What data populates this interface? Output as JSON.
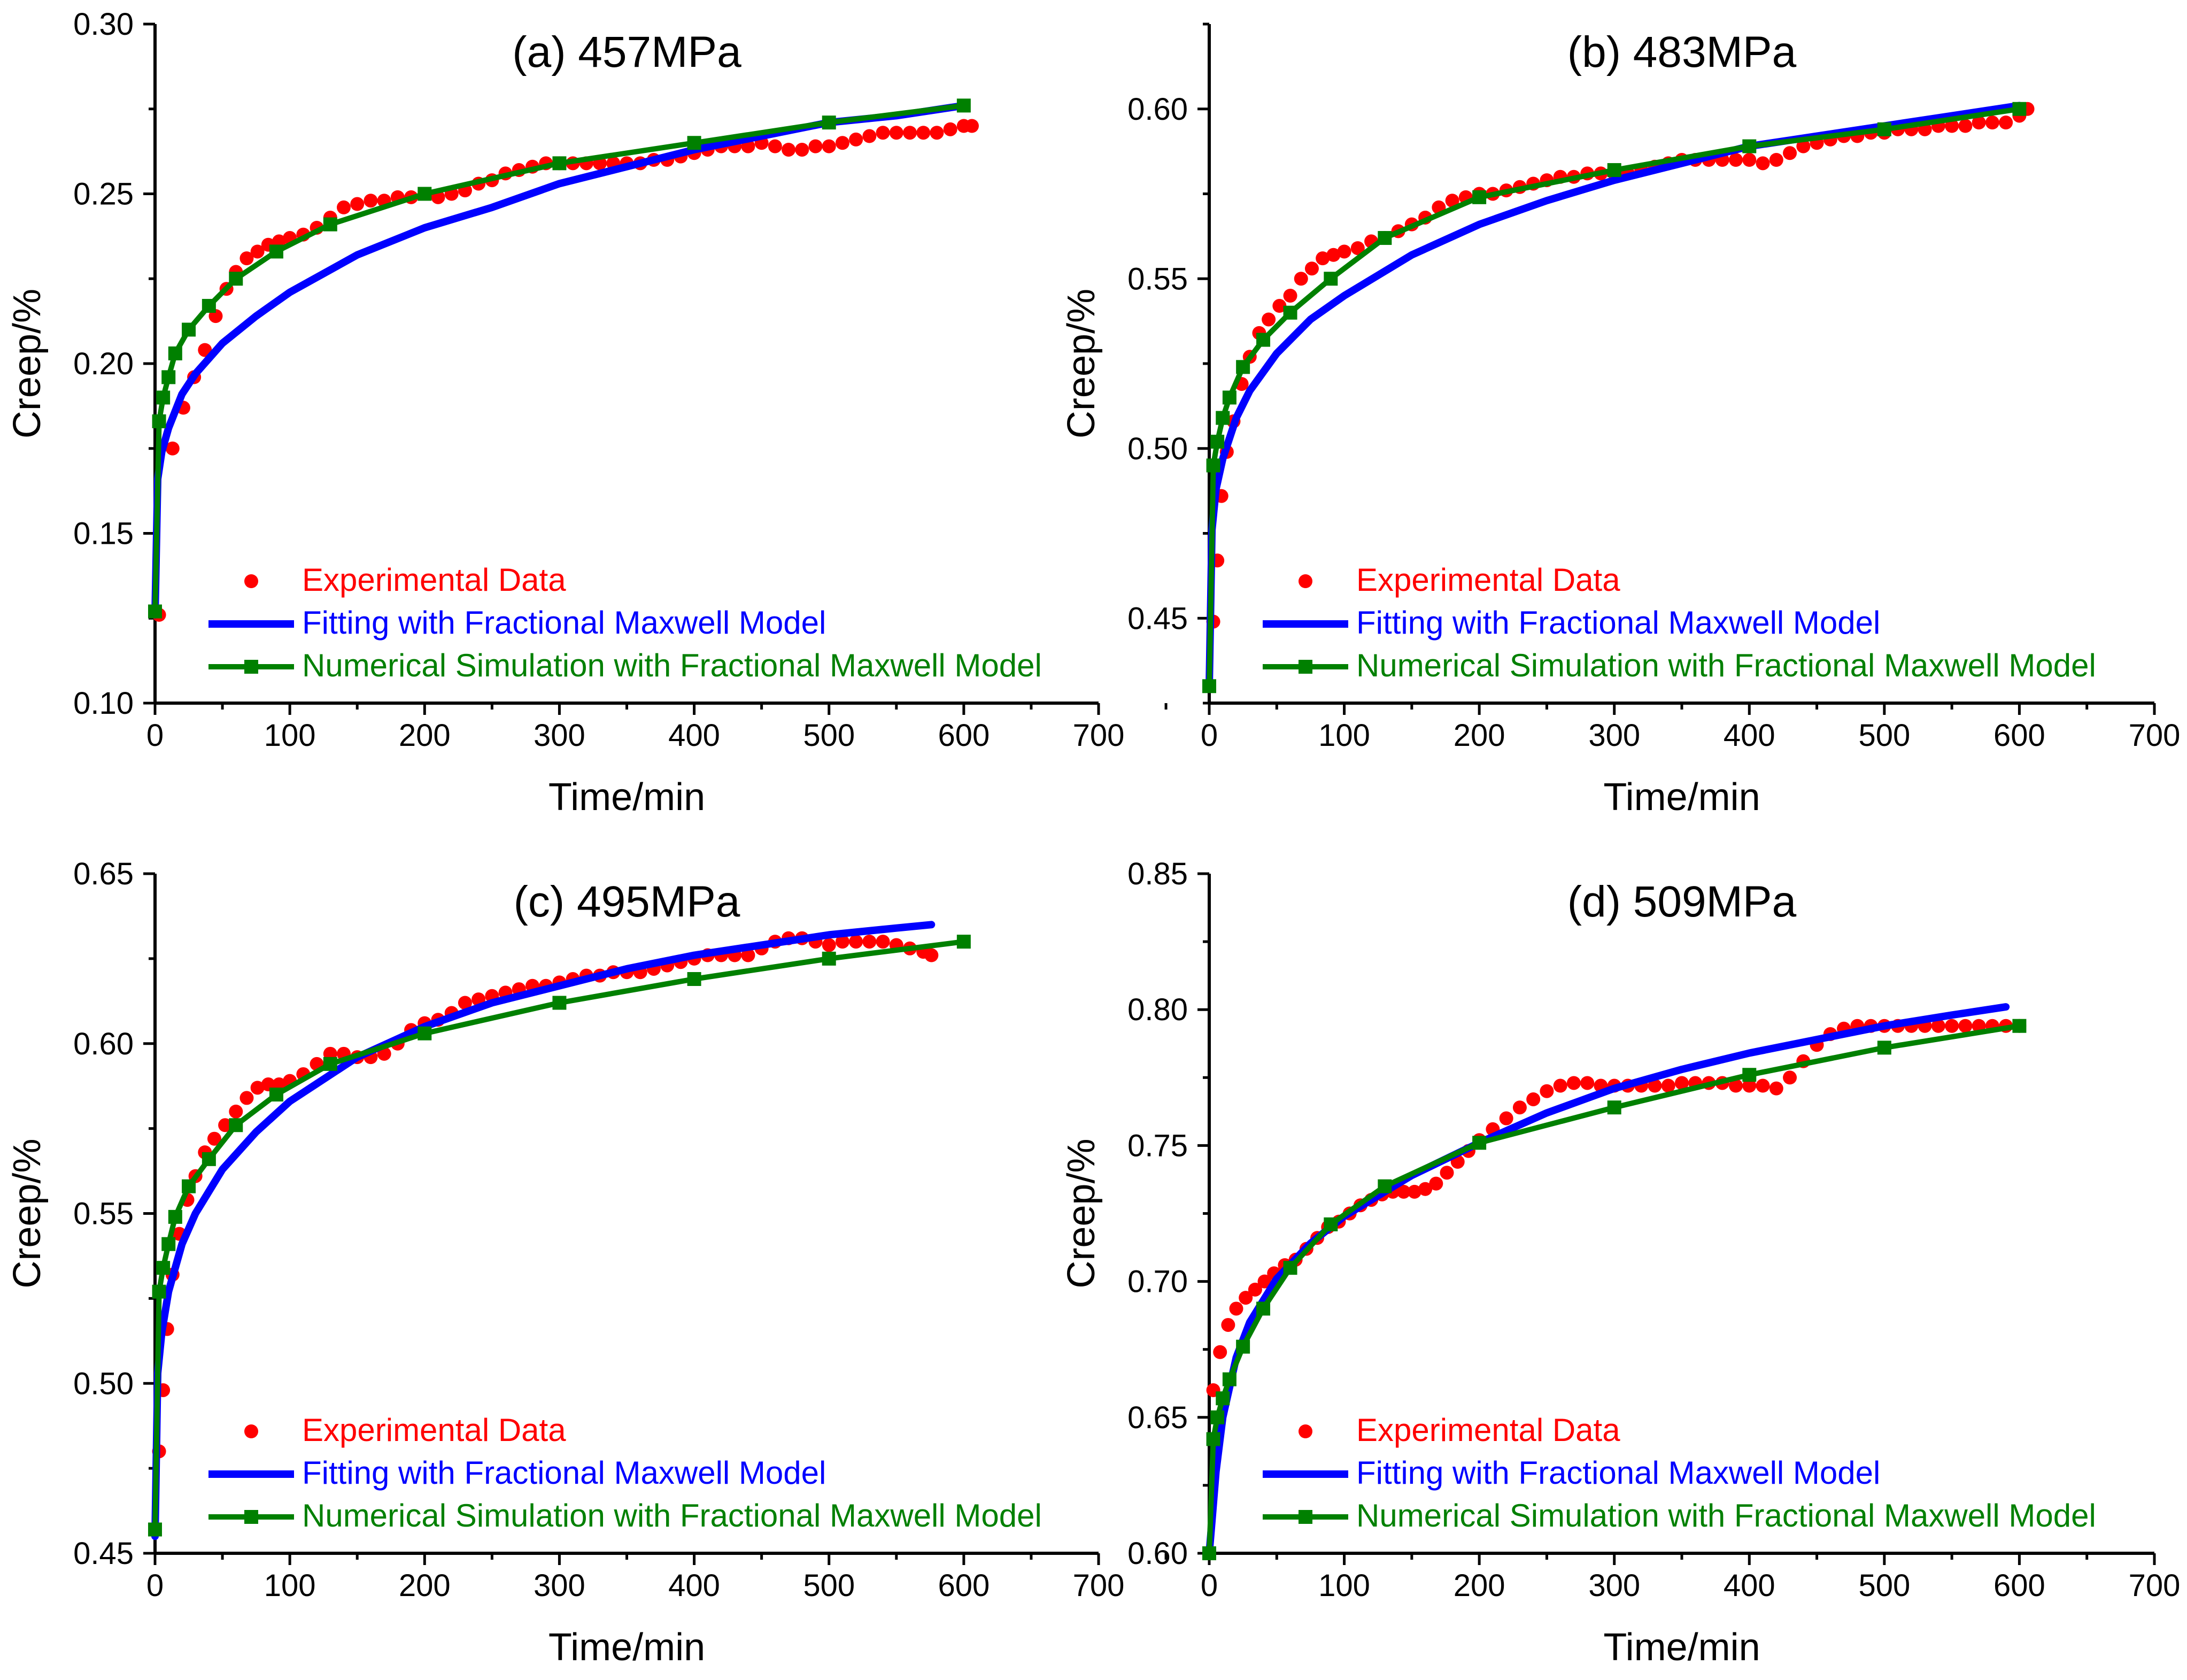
{
  "colors": {
    "experimental": "#ff0000",
    "fitting": "#0000ff",
    "simulation": "#008000",
    "axis": "#000000"
  },
  "chart_data": [
    {
      "type": "line",
      "title": "(a) 457MPa",
      "xlabel": "Time/min",
      "ylabel": "Creep/%",
      "xlim": [
        0,
        700
      ],
      "ylim": [
        0.1,
        0.3
      ],
      "xticks": [
        "0",
        "100",
        "200",
        "300",
        "400",
        "500",
        "600",
        "700"
      ],
      "yticks": [
        "0.10",
        "0.15",
        "0.20",
        "0.25",
        "0.30"
      ],
      "legend": {
        "position": "bottom",
        "experimental": "Experimental Data",
        "fitting": "Fitting with Fractional Maxwell Model",
        "simulation": "Numerical Simulation with Fractional Maxwell Model"
      },
      "series": [
        {
          "name": "Experimental Data",
          "style": "scatter",
          "color": "#ff0000",
          "x": [
            3,
            13,
            21,
            29,
            37,
            45,
            53,
            60,
            68,
            76,
            84,
            92,
            100,
            110,
            120,
            130,
            140,
            150,
            160,
            170,
            180,
            190,
            200,
            210,
            220,
            230,
            240,
            250,
            260,
            270,
            280,
            290,
            300,
            310,
            320,
            330,
            340,
            350,
            360,
            370,
            380,
            390,
            400,
            410,
            420,
            430,
            440,
            450,
            460,
            470,
            480,
            490,
            500,
            510,
            520,
            530,
            540,
            550,
            560,
            570,
            580,
            590,
            600,
            606
          ],
          "y": [
            0.126,
            0.175,
            0.187,
            0.196,
            0.204,
            0.214,
            0.222,
            0.227,
            0.231,
            0.233,
            0.235,
            0.236,
            0.237,
            0.238,
            0.24,
            0.243,
            0.246,
            0.247,
            0.248,
            0.248,
            0.249,
            0.249,
            0.25,
            0.249,
            0.25,
            0.251,
            0.253,
            0.254,
            0.256,
            0.257,
            0.258,
            0.259,
            0.259,
            0.259,
            0.259,
            0.259,
            0.259,
            0.259,
            0.259,
            0.26,
            0.26,
            0.261,
            0.262,
            0.263,
            0.264,
            0.264,
            0.264,
            0.265,
            0.264,
            0.263,
            0.263,
            0.264,
            0.264,
            0.265,
            0.266,
            0.267,
            0.268,
            0.268,
            0.268,
            0.268,
            0.268,
            0.269,
            0.27,
            0.27
          ]
        },
        {
          "name": "Fitting with Fractional Maxwell Model",
          "style": "line",
          "color": "#0000ff",
          "x": [
            0,
            2,
            5,
            10,
            20,
            30,
            50,
            75,
            100,
            150,
            200,
            250,
            300,
            350,
            400,
            450,
            500,
            550,
            600
          ],
          "y": [
            0.126,
            0.166,
            0.174,
            0.181,
            0.191,
            0.197,
            0.206,
            0.214,
            0.221,
            0.232,
            0.24,
            0.246,
            0.253,
            0.258,
            0.263,
            0.267,
            0.271,
            0.273,
            0.276
          ]
        },
        {
          "name": "Numerical Simulation with Fractional Maxwell Model",
          "style": "line-markers",
          "color": "#008000",
          "x": [
            0,
            3,
            6,
            10,
            15,
            25,
            40,
            60,
            90,
            130,
            200,
            300,
            400,
            500,
            600
          ],
          "y": [
            0.127,
            0.183,
            0.19,
            0.196,
            0.203,
            0.21,
            0.217,
            0.225,
            0.233,
            0.241,
            0.25,
            0.259,
            0.265,
            0.271,
            0.276
          ]
        }
      ]
    },
    {
      "type": "line",
      "title": "(b) 483MPa",
      "xlabel": "Time/min",
      "ylabel": "Creep/%",
      "xlim": [
        0,
        700
      ],
      "ylim": [
        0.425,
        0.625
      ],
      "xticks": [
        "0",
        "100",
        "200",
        "300",
        "400",
        "500",
        "600",
        "700"
      ],
      "yticks": [
        "0.45",
        "0.50",
        "0.55",
        "0.60"
      ],
      "legend": {
        "position": "bottom",
        "experimental": "Experimental Data",
        "fitting": "Fitting with Fractional Maxwell Model",
        "simulation": "Numerical Simulation with Fractional Maxwell Model"
      },
      "series": [
        {
          "name": "Experimental Data",
          "style": "scatter",
          "color": "#ff0000",
          "x": [
            3,
            6,
            9,
            13,
            18,
            24,
            30,
            37,
            44,
            52,
            60,
            68,
            76,
            84,
            92,
            100,
            110,
            120,
            130,
            140,
            150,
            160,
            170,
            180,
            190,
            200,
            210,
            220,
            230,
            240,
            250,
            260,
            270,
            280,
            290,
            300,
            310,
            320,
            330,
            340,
            350,
            360,
            370,
            380,
            390,
            400,
            410,
            420,
            430,
            440,
            450,
            460,
            470,
            480,
            490,
            500,
            510,
            520,
            530,
            540,
            550,
            560,
            570,
            580,
            590,
            600,
            606
          ],
          "y": [
            0.449,
            0.467,
            0.486,
            0.499,
            0.508,
            0.519,
            0.527,
            0.534,
            0.538,
            0.542,
            0.545,
            0.55,
            0.553,
            0.556,
            0.557,
            0.558,
            0.559,
            0.561,
            0.562,
            0.564,
            0.566,
            0.568,
            0.571,
            0.573,
            0.574,
            0.575,
            0.575,
            0.576,
            0.577,
            0.578,
            0.579,
            0.58,
            0.58,
            0.581,
            0.581,
            0.581,
            0.581,
            0.582,
            0.583,
            0.584,
            0.585,
            0.585,
            0.585,
            0.585,
            0.585,
            0.585,
            0.584,
            0.585,
            0.587,
            0.589,
            0.59,
            0.591,
            0.592,
            0.592,
            0.593,
            0.593,
            0.594,
            0.594,
            0.594,
            0.595,
            0.595,
            0.595,
            0.596,
            0.596,
            0.596,
            0.598,
            0.6
          ]
        },
        {
          "name": "Fitting with Fractional Maxwell Model",
          "style": "line",
          "color": "#0000ff",
          "x": [
            0,
            2,
            5,
            10,
            20,
            30,
            50,
            75,
            100,
            150,
            200,
            250,
            300,
            350,
            400,
            450,
            500,
            550,
            600
          ],
          "y": [
            0.43,
            0.476,
            0.488,
            0.497,
            0.509,
            0.517,
            0.528,
            0.538,
            0.545,
            0.557,
            0.566,
            0.573,
            0.579,
            0.584,
            0.589,
            0.592,
            0.595,
            0.598,
            0.601
          ]
        },
        {
          "name": "Numerical Simulation with Fractional Maxwell Model",
          "style": "line-markers",
          "color": "#008000",
          "x": [
            0,
            3,
            6,
            10,
            15,
            25,
            40,
            60,
            90,
            130,
            200,
            300,
            400,
            500,
            600
          ],
          "y": [
            0.43,
            0.495,
            0.502,
            0.509,
            0.515,
            0.524,
            0.532,
            0.54,
            0.55,
            0.562,
            0.574,
            0.582,
            0.589,
            0.594,
            0.6
          ]
        }
      ]
    },
    {
      "type": "line",
      "title": "(c) 495MPa",
      "xlabel": "Time/min",
      "ylabel": "Creep/%",
      "xlim": [
        0,
        700
      ],
      "ylim": [
        0.45,
        0.65
      ],
      "xticks": [
        "0",
        "100",
        "200",
        "300",
        "400",
        "500",
        "600",
        "700"
      ],
      "yticks": [
        "0.45",
        "0.50",
        "0.55",
        "0.60",
        "0.65"
      ],
      "legend": {
        "position": "bottom",
        "experimental": "Experimental Data",
        "fitting": "Fitting with Fractional Maxwell Model",
        "simulation": "Numerical Simulation with Fractional Maxwell Model"
      },
      "series": [
        {
          "name": "Experimental Data",
          "style": "scatter",
          "color": "#ff0000",
          "x": [
            3,
            6,
            9,
            13,
            18,
            24,
            30,
            37,
            44,
            52,
            60,
            68,
            76,
            84,
            92,
            100,
            110,
            120,
            130,
            140,
            150,
            160,
            170,
            180,
            190,
            200,
            210,
            220,
            230,
            240,
            250,
            260,
            270,
            280,
            290,
            300,
            310,
            320,
            330,
            340,
            350,
            360,
            370,
            380,
            390,
            400,
            410,
            420,
            430,
            440,
            450,
            460,
            470,
            480,
            490,
            500,
            510,
            520,
            530,
            540,
            550,
            560,
            570,
            576
          ],
          "y": [
            0.48,
            0.498,
            0.516,
            0.532,
            0.544,
            0.554,
            0.561,
            0.568,
            0.572,
            0.576,
            0.58,
            0.584,
            0.587,
            0.588,
            0.588,
            0.589,
            0.591,
            0.594,
            0.597,
            0.597,
            0.596,
            0.596,
            0.597,
            0.6,
            0.604,
            0.606,
            0.607,
            0.609,
            0.612,
            0.613,
            0.614,
            0.615,
            0.616,
            0.617,
            0.617,
            0.618,
            0.619,
            0.62,
            0.62,
            0.621,
            0.621,
            0.621,
            0.622,
            0.623,
            0.624,
            0.625,
            0.626,
            0.626,
            0.626,
            0.626,
            0.628,
            0.63,
            0.631,
            0.631,
            0.63,
            0.629,
            0.63,
            0.63,
            0.63,
            0.63,
            0.629,
            0.628,
            0.627,
            0.626
          ]
        },
        {
          "name": "Fitting with Fractional Maxwell Model",
          "style": "line",
          "color": "#0000ff",
          "x": [
            0,
            2,
            5,
            10,
            20,
            30,
            50,
            75,
            100,
            150,
            200,
            250,
            300,
            350,
            400,
            450,
            500,
            550,
            576
          ],
          "y": [
            0.455,
            0.503,
            0.515,
            0.527,
            0.541,
            0.55,
            0.563,
            0.574,
            0.583,
            0.596,
            0.605,
            0.612,
            0.617,
            0.622,
            0.626,
            0.629,
            0.632,
            0.634,
            0.635
          ]
        },
        {
          "name": "Numerical Simulation with Fractional Maxwell Model",
          "style": "line-markers",
          "color": "#008000",
          "x": [
            0,
            3,
            6,
            10,
            15,
            25,
            40,
            60,
            90,
            130,
            200,
            300,
            400,
            500,
            600
          ],
          "y": [
            0.457,
            0.527,
            0.534,
            0.541,
            0.549,
            0.558,
            0.566,
            0.576,
            0.585,
            0.594,
            0.603,
            0.612,
            0.619,
            0.625,
            0.63
          ]
        }
      ]
    },
    {
      "type": "line",
      "title": "(d) 509MPa",
      "xlabel": "Time/min",
      "ylabel": "Creep/%",
      "xlim": [
        0,
        700
      ],
      "ylim": [
        0.6,
        0.85
      ],
      "xticks": [
        "0",
        "100",
        "200",
        "300",
        "400",
        "500",
        "600",
        "700"
      ],
      "yticks": [
        "0.60",
        "0.65",
        "0.70",
        "0.75",
        "0.80",
        "0.85"
      ],
      "legend": {
        "position": "bottom",
        "experimental": "Experimental Data",
        "fitting": "Fitting with Fractional Maxwell Model",
        "simulation": "Numerical Simulation with Fractional Maxwell Model"
      },
      "series": [
        {
          "name": "Experimental Data",
          "style": "scatter",
          "color": "#ff0000",
          "x": [
            3,
            8,
            14,
            20,
            27,
            34,
            41,
            48,
            56,
            64,
            72,
            80,
            88,
            96,
            104,
            112,
            120,
            128,
            136,
            144,
            152,
            160,
            168,
            176,
            184,
            192,
            200,
            210,
            220,
            230,
            240,
            250,
            260,
            270,
            280,
            290,
            300,
            310,
            320,
            330,
            340,
            350,
            360,
            370,
            380,
            390,
            400,
            410,
            420,
            430,
            440,
            450,
            460,
            470,
            480,
            490,
            500,
            510,
            520,
            530,
            540,
            550,
            560,
            570,
            580,
            590,
            600
          ],
          "y": [
            0.66,
            0.674,
            0.684,
            0.69,
            0.694,
            0.697,
            0.7,
            0.703,
            0.706,
            0.708,
            0.712,
            0.716,
            0.72,
            0.722,
            0.725,
            0.728,
            0.73,
            0.732,
            0.733,
            0.733,
            0.733,
            0.734,
            0.736,
            0.74,
            0.744,
            0.748,
            0.752,
            0.756,
            0.76,
            0.764,
            0.767,
            0.77,
            0.772,
            0.773,
            0.773,
            0.772,
            0.772,
            0.772,
            0.772,
            0.772,
            0.772,
            0.773,
            0.773,
            0.773,
            0.773,
            0.772,
            0.772,
            0.772,
            0.771,
            0.775,
            0.781,
            0.787,
            0.791,
            0.793,
            0.794,
            0.794,
            0.794,
            0.794,
            0.794,
            0.794,
            0.794,
            0.794,
            0.794,
            0.794,
            0.794,
            0.794,
            0.794
          ]
        },
        {
          "name": "Fitting with Fractional Maxwell Model",
          "style": "line",
          "color": "#0000ff",
          "x": [
            0,
            2,
            5,
            10,
            20,
            30,
            50,
            75,
            100,
            150,
            200,
            250,
            300,
            350,
            400,
            450,
            500,
            550,
            590
          ],
          "y": [
            0.6,
            0.612,
            0.63,
            0.65,
            0.672,
            0.685,
            0.701,
            0.714,
            0.724,
            0.739,
            0.751,
            0.762,
            0.771,
            0.778,
            0.784,
            0.789,
            0.794,
            0.798,
            0.801
          ]
        },
        {
          "name": "Numerical Simulation with Fractional Maxwell Model",
          "style": "line-markers",
          "color": "#008000",
          "x": [
            0,
            3,
            6,
            10,
            15,
            25,
            40,
            60,
            90,
            130,
            200,
            300,
            400,
            500,
            600
          ],
          "y": [
            0.6,
            0.642,
            0.65,
            0.657,
            0.664,
            0.676,
            0.69,
            0.705,
            0.721,
            0.735,
            0.751,
            0.764,
            0.776,
            0.786,
            0.794
          ]
        }
      ]
    }
  ]
}
